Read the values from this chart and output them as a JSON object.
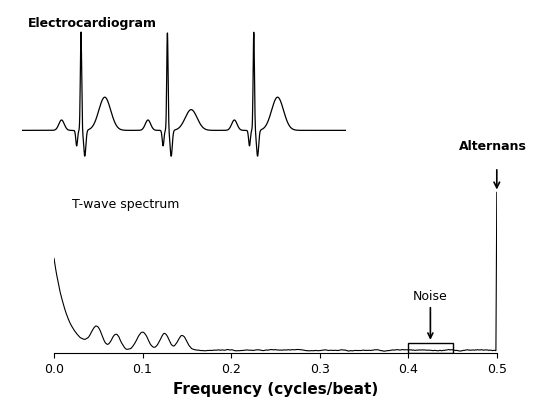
{
  "title": "",
  "xlabel": "Frequency (cycles/beat)",
  "xlim": [
    0.0,
    0.5
  ],
  "ylim": [
    0,
    1.0
  ],
  "xticks": [
    0.0,
    0.1,
    0.2,
    0.3,
    0.4,
    0.5
  ],
  "xtick_labels": [
    "0.0",
    "0.1",
    "0.2",
    "0.3",
    "0.4",
    "0.5"
  ],
  "spectrum_label": "T-wave spectrum",
  "noise_label": "Noise",
  "alternans_label": "Alternans",
  "line_color": "#000000",
  "background_color": "#ffffff",
  "inset_label": "Electrocardiogram"
}
